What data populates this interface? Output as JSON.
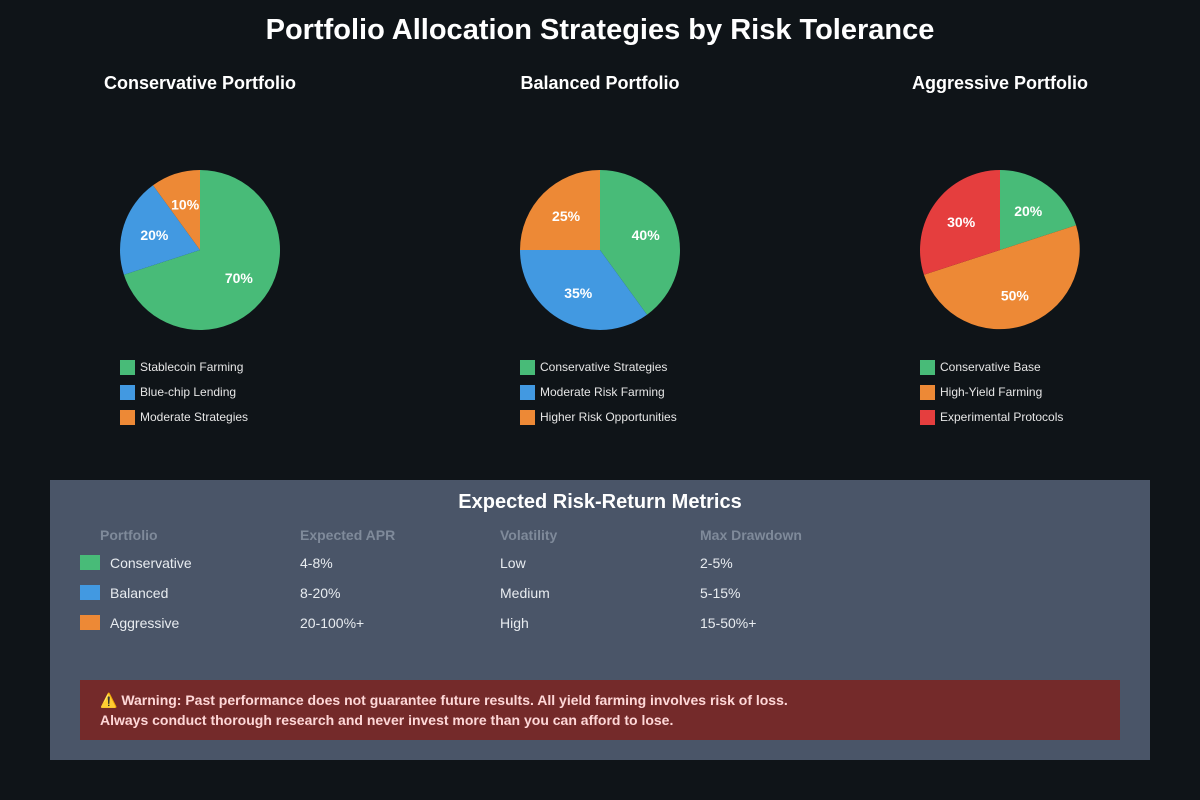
{
  "title": "Portfolio Allocation Strategies by Risk Tolerance",
  "colors": {
    "green": "#48bb78",
    "blue": "#4299e1",
    "orange": "#ed8936",
    "red": "#e53e3e"
  },
  "chart_data": [
    {
      "type": "pie",
      "title": "Conservative Portfolio",
      "slices": [
        {
          "label": "Stablecoin Farming",
          "value": 70,
          "display": "70%",
          "color": "#48bb78"
        },
        {
          "label": "Blue-chip Lending",
          "value": 20,
          "display": "20%",
          "color": "#4299e1"
        },
        {
          "label": "Moderate Strategies",
          "value": 10,
          "display": "10%",
          "color": "#ed8936"
        }
      ],
      "legend_placement": "bottom"
    },
    {
      "type": "pie",
      "title": "Balanced Portfolio",
      "slices": [
        {
          "label": "Conservative Strategies",
          "value": 40,
          "display": "40%",
          "color": "#48bb78"
        },
        {
          "label": "Moderate Risk Farming",
          "value": 35,
          "display": "35%",
          "color": "#4299e1"
        },
        {
          "label": "Higher Risk Opportunities",
          "value": 25,
          "display": "25%",
          "color": "#ed8936"
        }
      ],
      "legend_placement": "bottom"
    },
    {
      "type": "pie",
      "title": "Aggressive Portfolio",
      "slices": [
        {
          "label": "Conservative Base",
          "value": 20,
          "display": "20%",
          "color": "#48bb78"
        },
        {
          "label": "High-Yield Farming",
          "value": 50,
          "display": "50%",
          "color": "#ed8936"
        },
        {
          "label": "Experimental Protocols",
          "value": 30,
          "display": "30%",
          "color": "#e53e3e"
        }
      ],
      "legend_placement": "bottom"
    }
  ],
  "metrics": {
    "title": "Expected Risk-Return Metrics",
    "headers": [
      "Portfolio",
      "Expected APR",
      "Volatility",
      "Max Drawdown"
    ],
    "rows": [
      {
        "portfolio": "Conservative",
        "apr": "4-8%",
        "volatility": "Low",
        "drawdown": "2-5%",
        "color": "#48bb78"
      },
      {
        "portfolio": "Balanced",
        "apr": "8-20%",
        "volatility": "Medium",
        "drawdown": "5-15%",
        "color": "#4299e1"
      },
      {
        "portfolio": "Aggressive",
        "apr": "20-100%+",
        "volatility": "High",
        "drawdown": "15-50%+",
        "color": "#ed8936"
      }
    ]
  },
  "warning": {
    "line1": "⚠️ Warning: Past performance does not guarantee future results. All yield farming involves risk of loss.",
    "line2": "Always conduct thorough research and never invest more than you can afford to lose."
  }
}
